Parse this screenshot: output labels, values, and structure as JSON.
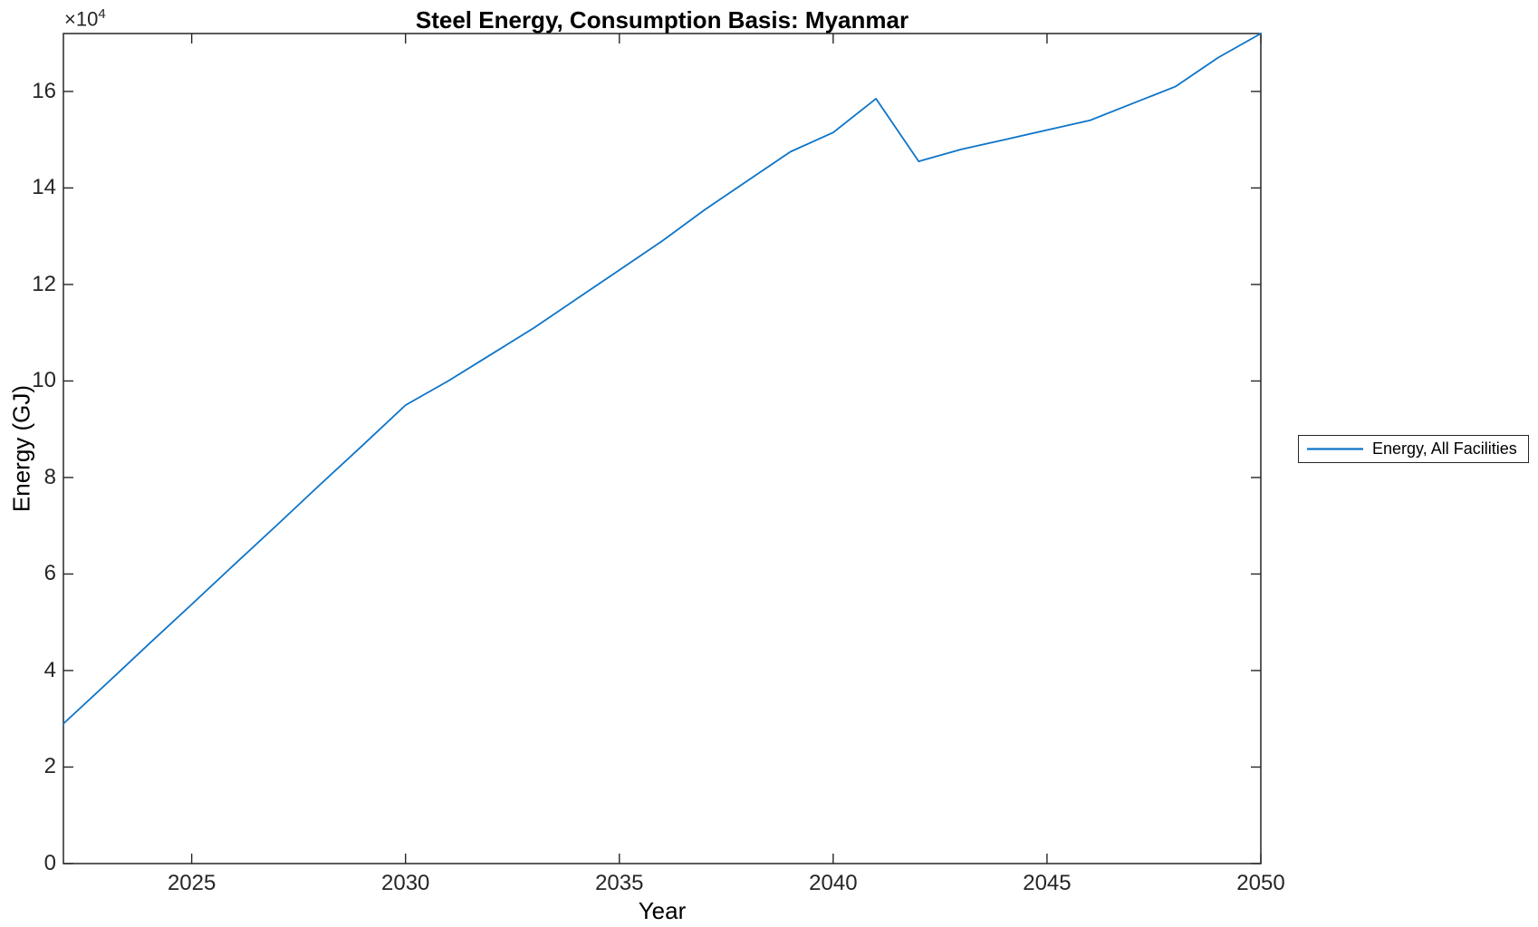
{
  "figure": {
    "background": "#ffffff",
    "axis_color": "#262626",
    "text_color": "#000000"
  },
  "chart_data": {
    "type": "line",
    "title": "Steel Energy, Consumption Basis: Myanmar",
    "xlabel": "Year",
    "ylabel": "Energy (GJ)",
    "y_offset_base": "×10",
    "y_offset_exp": "4",
    "y_unit_multiplier": "×10^4",
    "xlim": [
      2022,
      2050
    ],
    "ylim": [
      0,
      17.2
    ],
    "xticks": [
      2025,
      2030,
      2035,
      2040,
      2045,
      2050
    ],
    "yticks": [
      0,
      2,
      4,
      6,
      8,
      10,
      12,
      14,
      16
    ],
    "grid": false,
    "legend_position": "right-outside",
    "line_color": "#0d74c8",
    "x": [
      2022,
      2023,
      2024,
      2025,
      2026,
      2027,
      2028,
      2029,
      2030,
      2031,
      2032,
      2033,
      2034,
      2035,
      2036,
      2037,
      2038,
      2039,
      2040,
      2041,
      2042,
      2043,
      2044,
      2045,
      2046,
      2047,
      2048,
      2049,
      2050
    ],
    "series": [
      {
        "name": "Energy, All Facilities",
        "values_e4_GJ": [
          2.9,
          3.72,
          4.55,
          5.37,
          6.2,
          7.02,
          7.85,
          8.67,
          9.5,
          10.0,
          10.55,
          11.1,
          11.7,
          12.3,
          12.9,
          13.55,
          14.15,
          14.75,
          15.15,
          15.85,
          14.55,
          14.8,
          15.0,
          15.2,
          15.4,
          15.75,
          16.1,
          16.7,
          17.2
        ]
      }
    ]
  },
  "legend": {
    "label": "Energy, All Facilities"
  }
}
